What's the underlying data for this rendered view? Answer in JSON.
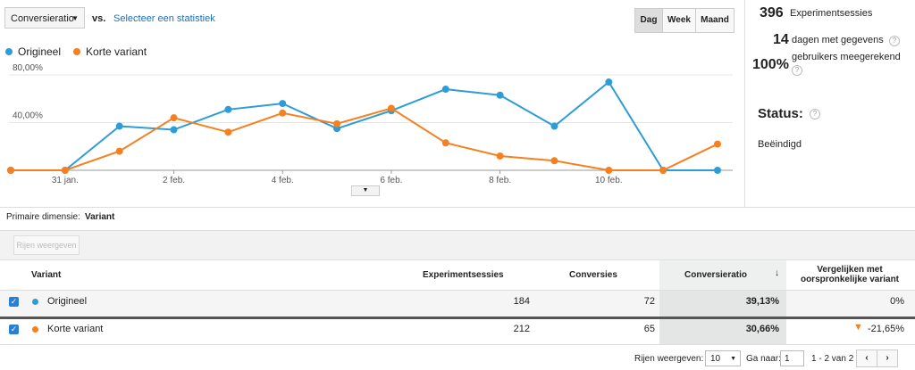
{
  "toolbar": {
    "metric": "Conversieratio",
    "vs": "vs.",
    "select": "Selecteer een statistiek",
    "buttons": [
      "Dag",
      "Week",
      "Maand"
    ]
  },
  "chart_data": {
    "type": "line",
    "categories": [
      null,
      "31 jan.",
      null,
      "2 feb.",
      null,
      "4 feb.",
      null,
      "6 feb.",
      null,
      "8 feb.",
      null,
      "10 feb.",
      null,
      null
    ],
    "series": [
      {
        "name": "Origineel",
        "color": "#2e9cd6",
        "values": [
          0,
          0,
          37,
          34,
          51,
          56,
          35,
          50,
          68,
          63,
          37,
          74,
          0,
          0
        ]
      },
      {
        "name": "Korte variant",
        "color": "#f6801f",
        "values": [
          0,
          0,
          16,
          44,
          32,
          48,
          39,
          52,
          23,
          12,
          8,
          0,
          0,
          22
        ]
      }
    ],
    "ylim": [
      0,
      83
    ],
    "yticks": [
      {
        "value": 40,
        "label": "40,00%"
      },
      {
        "value": 80,
        "label": "80,00%"
      }
    ],
    "grid": true
  },
  "stats": {
    "sessions": "396",
    "sessions_label": "Experimentsessies",
    "days": "14",
    "days_label": "dagen met gegevens",
    "users": "100%",
    "users_label": "gebruikers meegerekend",
    "status_label": "Status:",
    "status": "Beëindigd"
  },
  "dimension": {
    "label": "Primaire dimensie:",
    "value": "Variant"
  },
  "rows_button": "Rijen weergeven",
  "table": {
    "headers": [
      "Variant",
      "Experimentsessies",
      "Conversies",
      "Conversieratio",
      "Vergelijken met oorspronkelijke variant"
    ],
    "rows": [
      [
        "Origineel",
        "184",
        "72",
        "39,13%",
        "0%"
      ],
      [
        "Korte variant",
        "212",
        "65",
        "30,66%",
        "-21,65%"
      ]
    ]
  },
  "footer": {
    "rows_label": "Rijen weergeven:",
    "rows_value": "10",
    "goto_label": "Ga naar:",
    "goto_value": "1",
    "range": "1 - 2 van 2"
  }
}
